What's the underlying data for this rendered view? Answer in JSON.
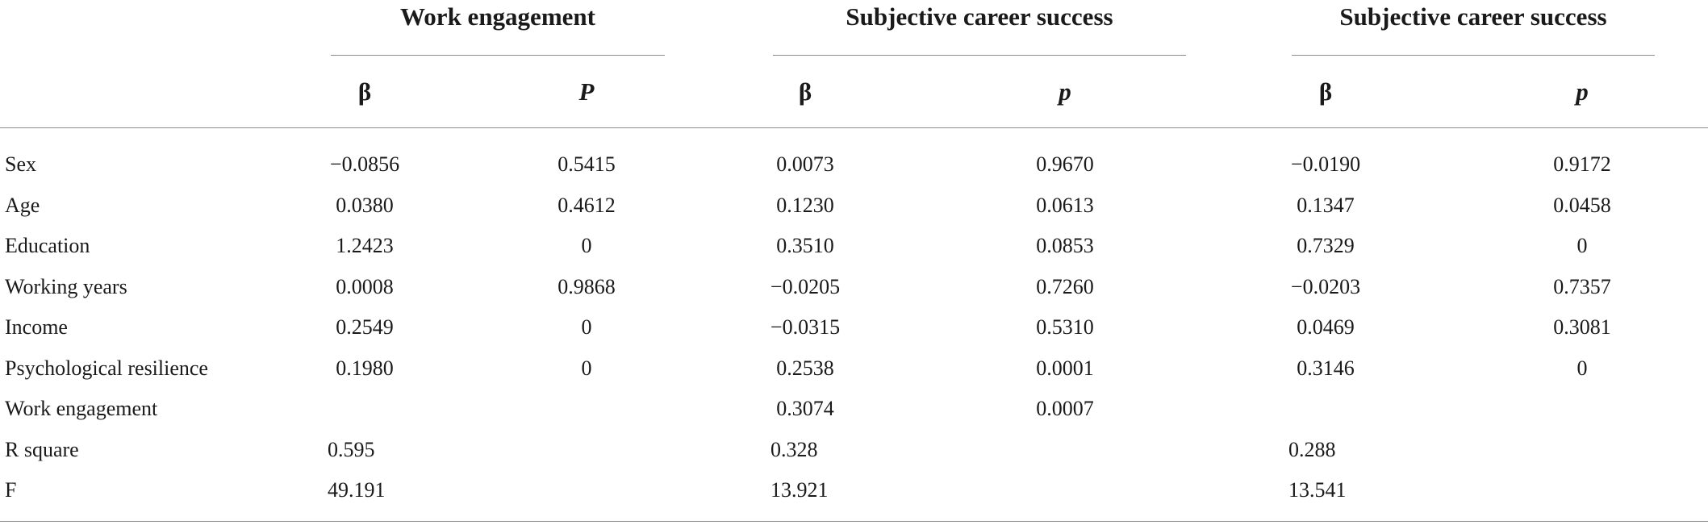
{
  "table": {
    "groups": [
      {
        "title": "Work engagement",
        "sub": [
          "β",
          "P"
        ]
      },
      {
        "title": "Subjective career success",
        "sub": [
          "β",
          "p"
        ]
      },
      {
        "title": "Subjective career success",
        "sub": [
          "β",
          "p"
        ]
      }
    ],
    "rows": [
      {
        "label": "Sex",
        "values": [
          "−0.0856",
          "0.5415",
          "0.0073",
          "0.9670",
          "−0.0190",
          "0.9172"
        ]
      },
      {
        "label": "Age",
        "values": [
          "0.0380",
          "0.4612",
          "0.1230",
          "0.0613",
          "0.1347",
          "0.0458"
        ]
      },
      {
        "label": "Education",
        "values": [
          "1.2423",
          "0",
          "0.3510",
          "0.0853",
          "0.7329",
          "0"
        ]
      },
      {
        "label": "Working years",
        "values": [
          "0.0008",
          "0.9868",
          "−0.0205",
          "0.7260",
          "−0.0203",
          "0.7357"
        ]
      },
      {
        "label": "Income",
        "values": [
          "0.2549",
          "0",
          "−0.0315",
          "0.5310",
          "0.0469",
          "0.3081"
        ]
      },
      {
        "label": "Psychological resilience",
        "values": [
          "0.1980",
          "0",
          "0.2538",
          "0.0001",
          "0.3146",
          "0"
        ]
      },
      {
        "label": "Work engagement",
        "values": [
          "",
          "",
          "0.3074",
          "0.0007",
          "",
          ""
        ]
      }
    ],
    "summary_rows": [
      {
        "label": "R square",
        "values": [
          "0.595",
          "0.328",
          "0.288"
        ]
      },
      {
        "label": "F",
        "values": [
          "49.191",
          "13.921",
          "13.541"
        ]
      }
    ]
  }
}
